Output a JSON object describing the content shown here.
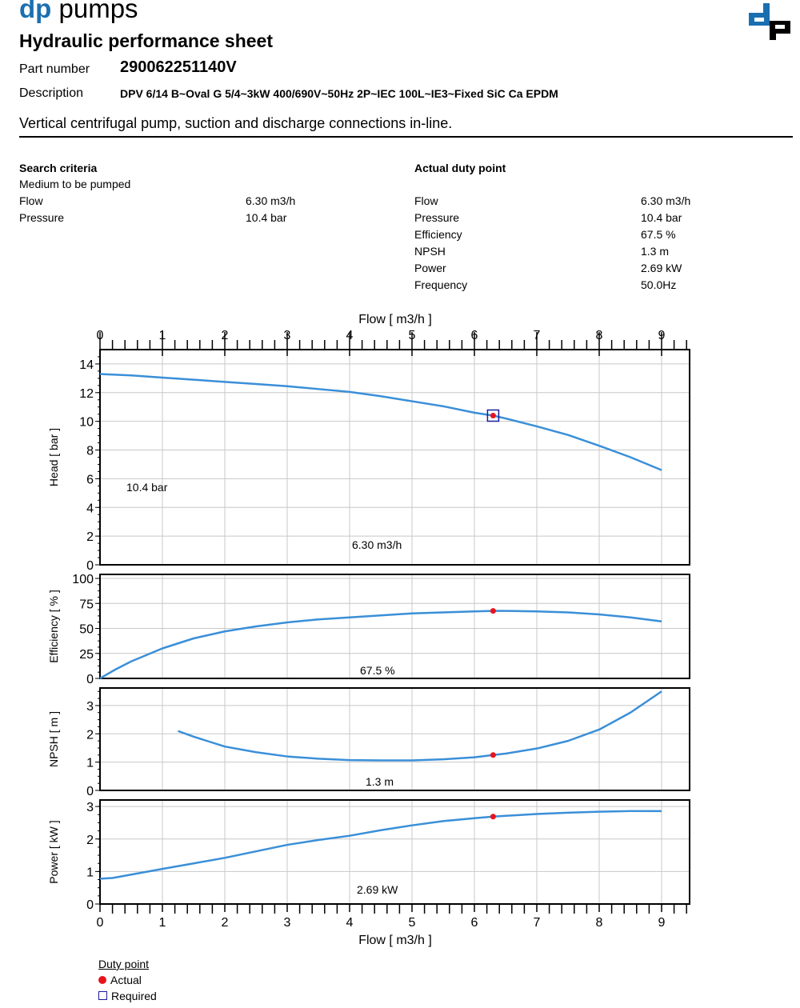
{
  "header": {
    "brand_a": "dp",
    "brand_b": "pumps",
    "logo": "dp-logo",
    "title": "Hydraulic performance sheet",
    "part_label": "Part number",
    "part_value": "290062251140V",
    "desc_label": "Description",
    "desc_value": "DPV 6/14 B~Oval G 5/4~3kW 400/690V~50Hz 2P~IEC 100L~IE3~Fixed SiC Ca EPDM",
    "subtitle": "Vertical centrifugal pump, suction and discharge connections in-line."
  },
  "search": {
    "heading": "Search criteria",
    "medium": "Medium to be pumped",
    "rows": [
      {
        "label": "Flow",
        "value": "6.30 m3/h"
      },
      {
        "label": "Pressure",
        "value": "10.4 bar"
      }
    ]
  },
  "duty": {
    "heading": "Actual duty point",
    "rows": [
      {
        "label": "Flow",
        "value": "6.30 m3/h"
      },
      {
        "label": "Pressure",
        "value": "10.4 bar"
      },
      {
        "label": "Efficiency",
        "value": "67.5 %"
      },
      {
        "label": "NPSH",
        "value": "1.3 m"
      },
      {
        "label": "Power",
        "value": "2.69 kW"
      },
      {
        "label": "Frequency",
        "value": "50.0Hz"
      }
    ]
  },
  "colors": {
    "curve": "#3a8fd8",
    "actual": "#e8141c",
    "required": "#1c1c9c",
    "grid": "#c8c8c8"
  },
  "chart_data": [
    {
      "type": "line",
      "xlabel": "Flow [ m3/h ]",
      "ylabel": "Head [ bar ]",
      "xlim": [
        0,
        9.45
      ],
      "ylim": [
        0,
        15
      ],
      "xticks": [
        0,
        1,
        2,
        3,
        4,
        5,
        6,
        7,
        8,
        9
      ],
      "yticks": [
        0,
        2,
        4,
        6,
        8,
        10,
        12,
        14
      ],
      "grid": true,
      "x": [
        0,
        0.5,
        1,
        1.5,
        2,
        2.5,
        3,
        3.5,
        4,
        4.5,
        5,
        5.5,
        6,
        6.3,
        6.5,
        7,
        7.5,
        8,
        8.5,
        9
      ],
      "y": [
        13.3,
        13.2,
        13.05,
        12.9,
        12.75,
        12.6,
        12.45,
        12.25,
        12.05,
        11.75,
        11.4,
        11.05,
        10.6,
        10.4,
        10.2,
        9.65,
        9.05,
        8.3,
        7.5,
        6.6
      ],
      "actual": [
        6.3,
        10.4
      ],
      "required": [
        6.3,
        10.4
      ],
      "annotations": [
        "10.4 bar",
        "6.30 m3/h"
      ]
    },
    {
      "type": "line",
      "ylabel": "Efficiency [ % ]",
      "xlim": [
        0,
        9.45
      ],
      "ylim": [
        0,
        104
      ],
      "yticks": [
        0,
        25,
        50,
        75,
        100
      ],
      "grid": true,
      "x": [
        0,
        0.25,
        0.5,
        1,
        1.5,
        2,
        2.5,
        3,
        3.5,
        4,
        4.5,
        5,
        5.5,
        6,
        6.3,
        6.5,
        7,
        7.5,
        8,
        8.5,
        9
      ],
      "y": [
        0,
        9,
        17,
        30,
        40,
        47,
        52,
        56,
        59,
        61,
        63,
        65,
        66,
        67,
        67.5,
        67.5,
        67,
        66,
        64,
        61,
        57
      ],
      "actual": [
        6.3,
        67.5
      ],
      "annotations": [
        "67.5 %"
      ]
    },
    {
      "type": "line",
      "ylabel": "NPSH [ m ]",
      "xlim": [
        0,
        9.45
      ],
      "ylim": [
        0,
        3.62
      ],
      "yticks": [
        0,
        1,
        2,
        3
      ],
      "grid": true,
      "x": [
        1.25,
        1.5,
        2,
        2.5,
        3,
        3.5,
        4,
        4.5,
        5,
        5.5,
        6,
        6.3,
        6.5,
        7,
        7.5,
        8,
        8.5,
        9
      ],
      "y": [
        2.1,
        1.9,
        1.55,
        1.35,
        1.2,
        1.12,
        1.07,
        1.06,
        1.06,
        1.1,
        1.17,
        1.25,
        1.3,
        1.48,
        1.75,
        2.15,
        2.75,
        3.5
      ],
      "actual": [
        6.3,
        1.25
      ],
      "annotations": [
        "1.3 m"
      ]
    },
    {
      "type": "line",
      "xlabel": "Flow [ m3/h ]",
      "ylabel": "Power [ kW ]",
      "xlim": [
        0,
        9.45
      ],
      "ylim": [
        0,
        3.2
      ],
      "xticks": [
        0,
        1,
        2,
        3,
        4,
        5,
        6,
        7,
        8,
        9
      ],
      "yticks": [
        0,
        1,
        2,
        3
      ],
      "grid": true,
      "x": [
        0,
        0.2,
        1,
        1.5,
        2,
        2.5,
        3,
        3.5,
        4,
        4.5,
        5,
        5.5,
        6,
        6.3,
        7,
        7.5,
        8,
        8.5,
        9
      ],
      "y": [
        0.78,
        0.8,
        1.08,
        1.25,
        1.42,
        1.62,
        1.82,
        1.97,
        2.1,
        2.27,
        2.42,
        2.55,
        2.64,
        2.69,
        2.77,
        2.81,
        2.84,
        2.86,
        2.86
      ],
      "actual": [
        6.3,
        2.69
      ],
      "annotations": [
        "2.69 kW"
      ]
    }
  ],
  "legend": {
    "title": "Duty point",
    "actual": "Actual",
    "required": "Required"
  }
}
